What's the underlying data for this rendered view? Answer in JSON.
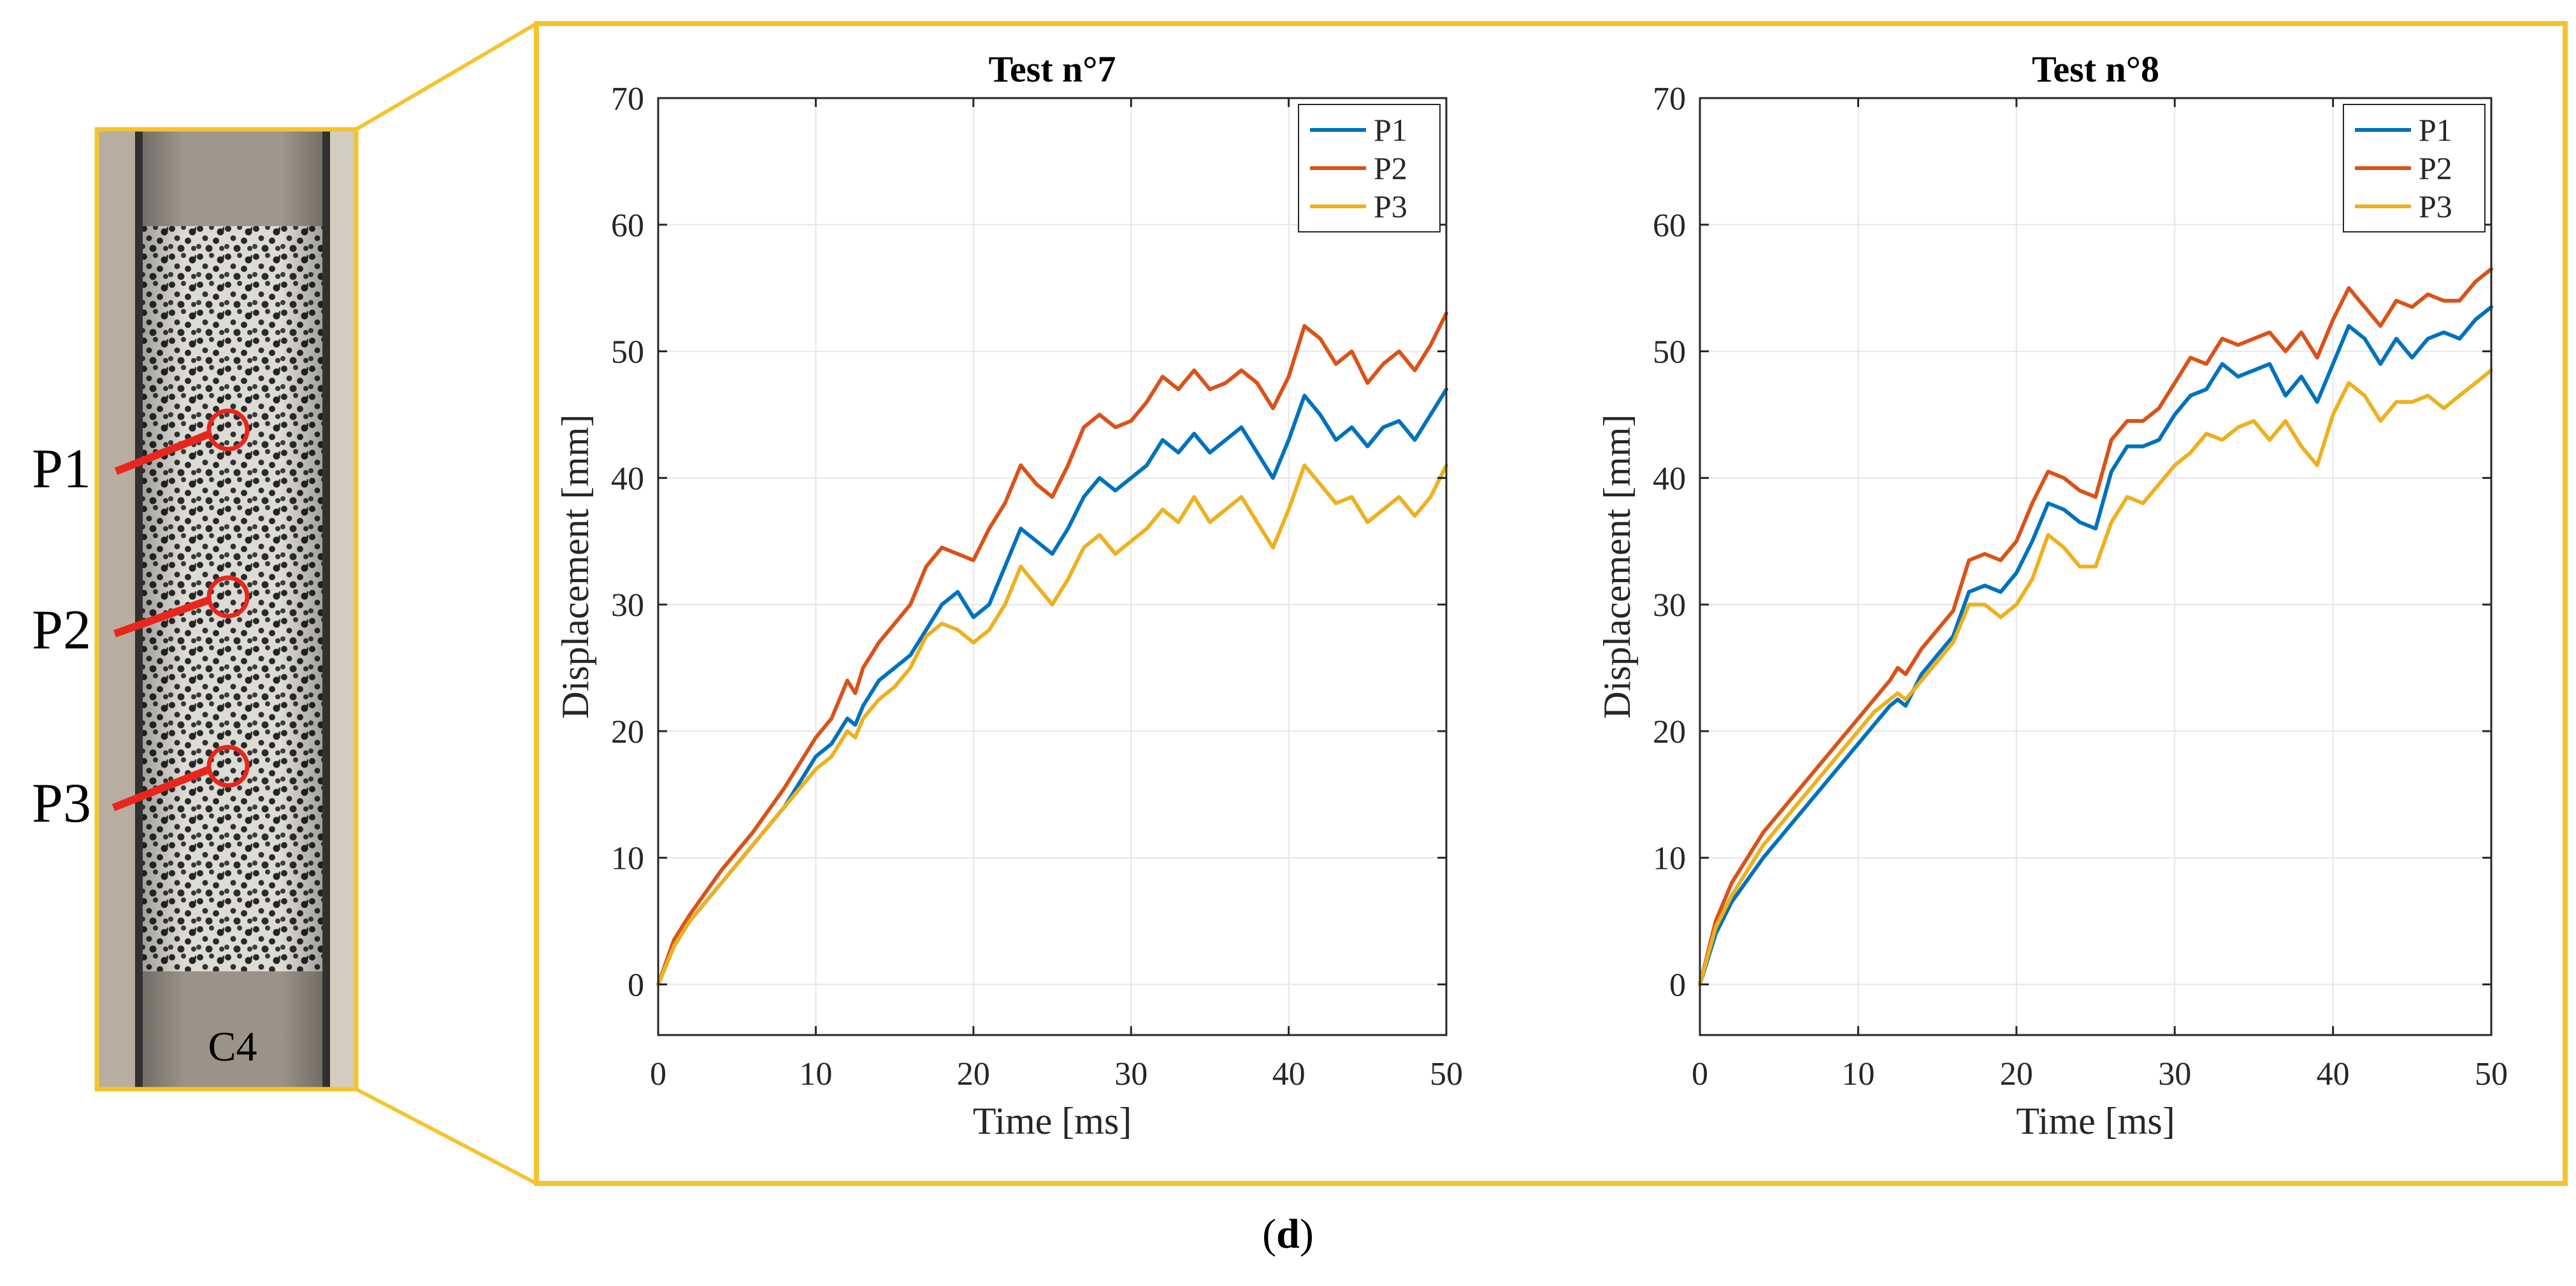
{
  "figure": {
    "caption_label": "d",
    "specimen_label": "C4",
    "points": [
      "P1",
      "P2",
      "P3"
    ],
    "frame_color": "#F4C430",
    "marker_color": "#E8261E"
  },
  "chart_data": [
    {
      "type": "line",
      "title": "Test n°7",
      "xlabel": "Time [ms]",
      "ylabel": "Displacement [mm]",
      "xlim": [
        0,
        50
      ],
      "ylim": [
        -4,
        70
      ],
      "xticks": [
        0,
        10,
        20,
        30,
        40,
        50
      ],
      "yticks": [
        0,
        10,
        20,
        30,
        40,
        50,
        60,
        70
      ],
      "grid": true,
      "legend": "top-right",
      "series": [
        {
          "name": "P1",
          "color": "#0072BD",
          "x": [
            0,
            1,
            2,
            4,
            6,
            8,
            9,
            10,
            11,
            11.5,
            12,
            12.5,
            13,
            14,
            15,
            16,
            17,
            18,
            19,
            20,
            21,
            22,
            23,
            24,
            25,
            26,
            27,
            28,
            29,
            30,
            31,
            32,
            33,
            34,
            35,
            36,
            37,
            38,
            39,
            40,
            41,
            42,
            43,
            44,
            45,
            46,
            47,
            48,
            49,
            50
          ],
          "y": [
            0,
            3,
            5,
            8,
            11,
            14,
            16,
            18,
            19,
            20,
            21,
            20.5,
            22,
            24,
            25,
            26,
            28,
            30,
            31,
            29,
            30,
            33,
            36,
            35,
            34,
            36,
            38.5,
            40,
            39,
            40,
            41,
            43,
            42,
            43.5,
            42,
            43,
            44,
            42,
            40,
            43,
            46.5,
            45,
            43,
            44,
            42.5,
            44,
            44.5,
            43,
            45,
            47
          ]
        },
        {
          "name": "P2",
          "color": "#D95319",
          "x": [
            0,
            1,
            2,
            4,
            6,
            8,
            9,
            10,
            11,
            11.5,
            12,
            12.5,
            13,
            14,
            15,
            16,
            17,
            18,
            19,
            20,
            21,
            22,
            23,
            24,
            25,
            26,
            27,
            28,
            29,
            30,
            31,
            32,
            33,
            34,
            35,
            36,
            37,
            38,
            39,
            40,
            41,
            42,
            43,
            44,
            45,
            46,
            47,
            48,
            49,
            50
          ],
          "y": [
            0,
            3.5,
            5.5,
            9,
            12,
            15.5,
            17.5,
            19.5,
            21,
            22.5,
            24,
            23,
            25,
            27,
            28.5,
            30,
            33,
            34.5,
            34,
            33.5,
            36,
            38,
            41,
            39.5,
            38.5,
            41,
            44,
            45,
            44,
            44.5,
            46,
            48,
            47,
            48.5,
            47,
            47.5,
            48.5,
            47.5,
            45.5,
            48,
            52,
            51,
            49,
            50,
            47.5,
            49,
            50,
            48.5,
            50.5,
            53
          ]
        },
        {
          "name": "P3",
          "color": "#EDB120",
          "x": [
            0,
            1,
            2,
            4,
            6,
            8,
            9,
            10,
            11,
            11.5,
            12,
            12.5,
            13,
            14,
            15,
            16,
            17,
            18,
            19,
            20,
            21,
            22,
            23,
            24,
            25,
            26,
            27,
            28,
            29,
            30,
            31,
            32,
            33,
            34,
            35,
            36,
            37,
            38,
            39,
            40,
            41,
            42,
            43,
            44,
            45,
            46,
            47,
            48,
            49,
            50
          ],
          "y": [
            0,
            3,
            5,
            8,
            11,
            14,
            15.5,
            17,
            18,
            19,
            20,
            19.5,
            21,
            22.5,
            23.5,
            25,
            27.5,
            28.5,
            28,
            27,
            28,
            30,
            33,
            31.5,
            30,
            32,
            34.5,
            35.5,
            34,
            35,
            36,
            37.5,
            36.5,
            38.5,
            36.5,
            37.5,
            38.5,
            36.5,
            34.5,
            37.5,
            41,
            39.5,
            38,
            38.5,
            36.5,
            37.5,
            38.5,
            37,
            38.5,
            41
          ]
        }
      ]
    },
    {
      "type": "line",
      "title": "Test n°8",
      "xlabel": "Time [ms]",
      "ylabel": "Displacement [mm]",
      "xlim": [
        0,
        50
      ],
      "ylim": [
        -4,
        70
      ],
      "xticks": [
        0,
        10,
        20,
        30,
        40,
        50
      ],
      "yticks": [
        0,
        10,
        20,
        30,
        40,
        50,
        60,
        70
      ],
      "grid": true,
      "legend": "top-right",
      "series": [
        {
          "name": "P1",
          "color": "#0072BD",
          "x": [
            0,
            1,
            2,
            4,
            6,
            8,
            10,
            11,
            12,
            12.5,
            13,
            14,
            15,
            16,
            17,
            18,
            19,
            20,
            21,
            22,
            23,
            24,
            25,
            26,
            27,
            28,
            29,
            30,
            31,
            32,
            33,
            34,
            35,
            36,
            37,
            38,
            39,
            40,
            41,
            42,
            43,
            44,
            45,
            46,
            47,
            48,
            49,
            50
          ],
          "y": [
            0,
            4,
            6.5,
            10,
            13,
            16,
            19,
            20.5,
            22,
            22.5,
            22,
            24.5,
            26,
            27.5,
            31,
            31.5,
            31,
            32.5,
            35,
            38,
            37.5,
            36.5,
            36,
            40.5,
            42.5,
            42.5,
            43,
            45,
            46.5,
            47,
            49,
            48,
            48.5,
            49,
            46.5,
            48,
            46,
            49,
            52,
            51,
            49,
            51,
            49.5,
            51,
            51.5,
            51,
            52.5,
            53.5
          ]
        },
        {
          "name": "P2",
          "color": "#D95319",
          "x": [
            0,
            1,
            2,
            4,
            6,
            8,
            10,
            11,
            12,
            12.5,
            13,
            14,
            15,
            16,
            17,
            18,
            19,
            20,
            21,
            22,
            23,
            24,
            25,
            26,
            27,
            28,
            29,
            30,
            31,
            32,
            33,
            34,
            35,
            36,
            37,
            38,
            39,
            40,
            41,
            42,
            43,
            44,
            45,
            46,
            47,
            48,
            49,
            50
          ],
          "y": [
            0,
            5,
            8,
            12,
            15,
            18,
            21,
            22.5,
            24,
            25,
            24.5,
            26.5,
            28,
            29.5,
            33.5,
            34,
            33.5,
            35,
            38,
            40.5,
            40,
            39,
            38.5,
            43,
            44.5,
            44.5,
            45.5,
            47.5,
            49.5,
            49,
            51,
            50.5,
            51,
            51.5,
            50,
            51.5,
            49.5,
            52.5,
            55,
            53.5,
            52,
            54,
            53.5,
            54.5,
            54,
            54,
            55.5,
            56.5
          ]
        },
        {
          "name": "P3",
          "color": "#EDB120",
          "x": [
            0,
            1,
            2,
            4,
            6,
            8,
            10,
            11,
            12,
            12.5,
            13,
            14,
            15,
            16,
            17,
            18,
            19,
            20,
            21,
            22,
            23,
            24,
            25,
            26,
            27,
            28,
            29,
            30,
            31,
            32,
            33,
            34,
            35,
            36,
            37,
            38,
            39,
            40,
            41,
            42,
            43,
            44,
            45,
            46,
            47,
            48,
            49,
            50
          ],
          "y": [
            0,
            4.5,
            7,
            11,
            14,
            17,
            20,
            21.5,
            22.5,
            23,
            22.5,
            24,
            25.5,
            27,
            30,
            30,
            29,
            30,
            32,
            35.5,
            34.5,
            33,
            33,
            36.5,
            38.5,
            38,
            39.5,
            41,
            42,
            43.5,
            43,
            44,
            44.5,
            43,
            44.5,
            42.5,
            41,
            45,
            47.5,
            46.5,
            44.5,
            46,
            46,
            46.5,
            45.5,
            46.5,
            47.5,
            48.5
          ]
        }
      ]
    }
  ]
}
